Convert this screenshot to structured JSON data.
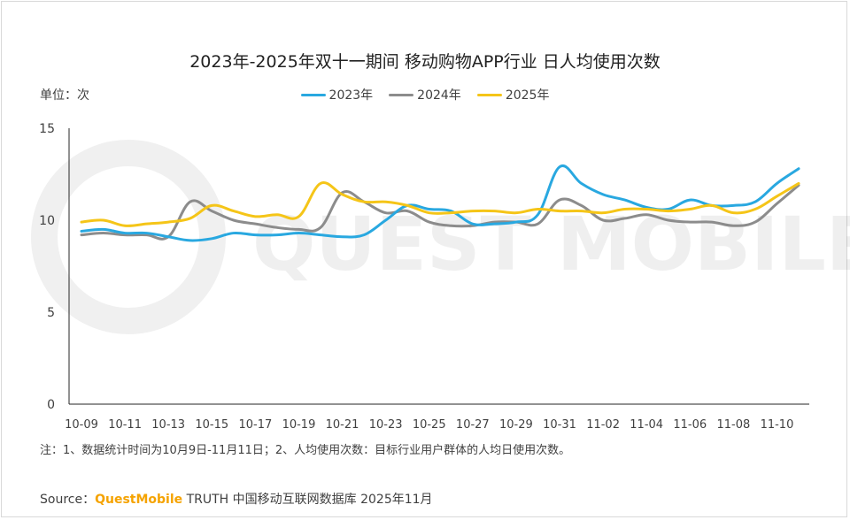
{
  "title": "2023年-2025年双十一期间 移动购物APP行业 日人均使用次数",
  "unit_label": "单位：次",
  "watermark_text": "QUEST MOBILE",
  "note": "注：1、数据统计时间为10月9日-11月11日；2、人均使用次数：目标行业用户群体的人均日使用次数。",
  "source": {
    "prefix": "Source：",
    "brand": "QuestMobile",
    "rest": " TRUTH 中国移动互联网数据库 2025年11月"
  },
  "colors": {
    "s2023": "#29a8e0",
    "s2024": "#8c8c8c",
    "s2025": "#f5c518"
  },
  "chart_data": {
    "type": "line",
    "title": "2023年-2025年双十一期间 移动购物APP行业 日人均使用次数",
    "ylabel": "单位：次",
    "ylim": [
      0,
      15
    ],
    "yticks": [
      "0",
      "5",
      "10",
      "15"
    ],
    "legend_position": "top-center",
    "grid": false,
    "x": [
      "10-09",
      "10-10",
      "10-11",
      "10-12",
      "10-13",
      "10-14",
      "10-15",
      "10-16",
      "10-17",
      "10-18",
      "10-19",
      "10-20",
      "10-21",
      "10-22",
      "10-23",
      "10-24",
      "10-25",
      "10-26",
      "10-27",
      "10-28",
      "10-29",
      "10-30",
      "10-31",
      "11-01",
      "11-02",
      "11-03",
      "11-04",
      "11-05",
      "11-06",
      "11-07",
      "11-08",
      "11-09",
      "11-10",
      "11-11"
    ],
    "xtick_labels": [
      "10-09",
      "10-11",
      "10-13",
      "10-15",
      "10-17",
      "10-19",
      "10-21",
      "10-23",
      "10-25",
      "10-27",
      "10-29",
      "10-31",
      "11-02",
      "11-04",
      "11-06",
      "11-08",
      "11-10"
    ],
    "series": [
      {
        "name": "2023年",
        "values": [
          9.4,
          9.5,
          9.3,
          9.3,
          9.1,
          8.9,
          9.0,
          9.3,
          9.2,
          9.2,
          9.3,
          9.2,
          9.1,
          9.2,
          10.0,
          10.8,
          10.6,
          10.5,
          9.8,
          9.8,
          9.9,
          10.3,
          12.9,
          12.0,
          11.4,
          11.1,
          10.7,
          10.6,
          11.1,
          10.8,
          10.8,
          11.0,
          12.0,
          12.8
        ]
      },
      {
        "name": "2024年",
        "values": [
          9.2,
          9.3,
          9.2,
          9.2,
          9.1,
          11.0,
          10.5,
          10.0,
          9.8,
          9.6,
          9.5,
          9.6,
          11.5,
          11.0,
          10.4,
          10.5,
          9.9,
          9.7,
          9.7,
          9.9,
          9.9,
          9.8,
          11.1,
          10.8,
          10.0,
          10.1,
          10.3,
          10.0,
          9.9,
          9.9,
          9.7,
          9.9,
          10.9,
          11.9
        ]
      },
      {
        "name": "2025年",
        "values": [
          9.9,
          10.0,
          9.7,
          9.8,
          9.9,
          10.1,
          10.8,
          10.5,
          10.2,
          10.3,
          10.2,
          12.0,
          11.4,
          11.0,
          11.0,
          10.8,
          10.4,
          10.4,
          10.5,
          10.5,
          10.4,
          10.6,
          10.5,
          10.5,
          10.4,
          10.6,
          10.6,
          10.5,
          10.6,
          10.8,
          10.4,
          10.6,
          11.3,
          12.0
        ]
      }
    ]
  }
}
